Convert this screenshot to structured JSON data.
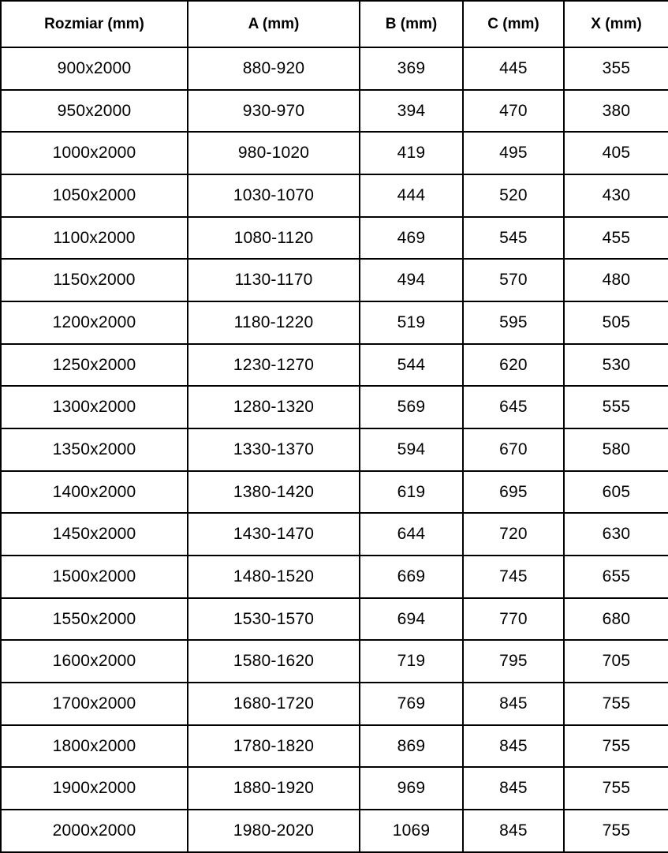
{
  "table": {
    "headers": [
      "Rozmiar (mm)",
      "A (mm)",
      "B (mm)",
      "C (mm)",
      "X (mm)"
    ],
    "rows": [
      [
        "900x2000",
        "880-920",
        "369",
        "445",
        "355"
      ],
      [
        "950x2000",
        "930-970",
        "394",
        "470",
        "380"
      ],
      [
        "1000x2000",
        "980-1020",
        "419",
        "495",
        "405"
      ],
      [
        "1050x2000",
        "1030-1070",
        "444",
        "520",
        "430"
      ],
      [
        "1100x2000",
        "1080-1120",
        "469",
        "545",
        "455"
      ],
      [
        "1150x2000",
        "1130-1170",
        "494",
        "570",
        "480"
      ],
      [
        "1200x2000",
        "1180-1220",
        "519",
        "595",
        "505"
      ],
      [
        "1250x2000",
        "1230-1270",
        "544",
        "620",
        "530"
      ],
      [
        "1300x2000",
        "1280-1320",
        "569",
        "645",
        "555"
      ],
      [
        "1350x2000",
        "1330-1370",
        "594",
        "670",
        "580"
      ],
      [
        "1400x2000",
        "1380-1420",
        "619",
        "695",
        "605"
      ],
      [
        "1450x2000",
        "1430-1470",
        "644",
        "720",
        "630"
      ],
      [
        "1500x2000",
        "1480-1520",
        "669",
        "745",
        "655"
      ],
      [
        "1550x2000",
        "1530-1570",
        "694",
        "770",
        "680"
      ],
      [
        "1600x2000",
        "1580-1620",
        "719",
        "795",
        "705"
      ],
      [
        "1700x2000",
        "1680-1720",
        "769",
        "845",
        "755"
      ],
      [
        "1800x2000",
        "1780-1820",
        "869",
        "845",
        "755"
      ],
      [
        "1900x2000",
        "1880-1920",
        "969",
        "845",
        "755"
      ],
      [
        "2000x2000",
        "1980-2020",
        "1069",
        "845",
        "755"
      ]
    ],
    "colors": {
      "border": "#000000",
      "background": "#ffffff",
      "text": "#000000"
    }
  },
  "chart_data": {
    "type": "table",
    "title": "",
    "columns": [
      "Rozmiar (mm)",
      "A (mm)",
      "B (mm)",
      "C (mm)",
      "X (mm)"
    ],
    "categories": [
      "900x2000",
      "950x2000",
      "1000x2000",
      "1050x2000",
      "1100x2000",
      "1150x2000",
      "1200x2000",
      "1250x2000",
      "1300x2000",
      "1350x2000",
      "1400x2000",
      "1450x2000",
      "1500x2000",
      "1550x2000",
      "1600x2000",
      "1700x2000",
      "1800x2000",
      "1900x2000",
      "2000x2000"
    ],
    "series": [
      {
        "name": "A (mm)",
        "values": [
          "880-920",
          "930-970",
          "980-1020",
          "1030-1070",
          "1080-1120",
          "1130-1170",
          "1180-1220",
          "1230-1270",
          "1280-1320",
          "1330-1370",
          "1380-1420",
          "1430-1470",
          "1480-1520",
          "1530-1570",
          "1580-1620",
          "1680-1720",
          "1780-1820",
          "1880-1920",
          "1980-2020"
        ]
      },
      {
        "name": "B (mm)",
        "values": [
          369,
          394,
          419,
          444,
          469,
          494,
          519,
          544,
          569,
          594,
          619,
          644,
          669,
          694,
          719,
          769,
          869,
          969,
          1069
        ]
      },
      {
        "name": "C (mm)",
        "values": [
          445,
          470,
          495,
          520,
          545,
          570,
          595,
          620,
          645,
          670,
          695,
          720,
          745,
          770,
          795,
          845,
          845,
          845,
          845
        ]
      },
      {
        "name": "X (mm)",
        "values": [
          355,
          380,
          405,
          430,
          455,
          480,
          505,
          530,
          555,
          580,
          605,
          630,
          655,
          680,
          705,
          755,
          755,
          755,
          755
        ]
      }
    ]
  }
}
